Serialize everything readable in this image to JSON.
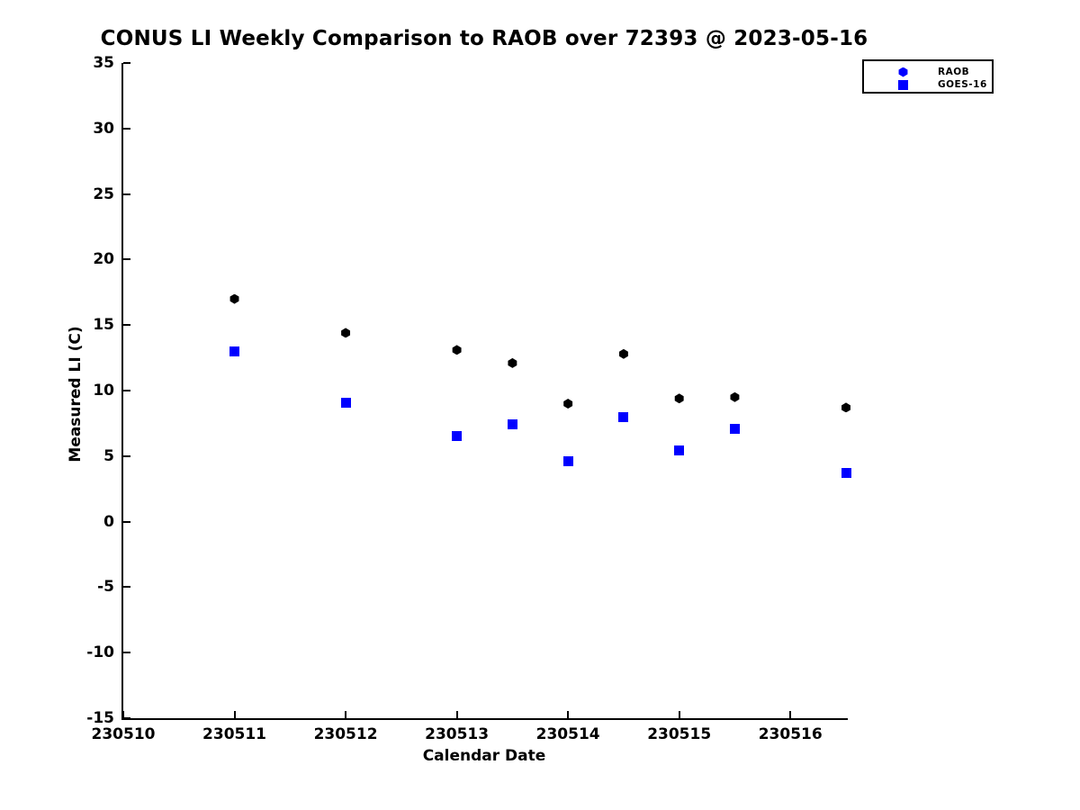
{
  "figure": {
    "title": "CONUS LI Weekly Comparison to RAOB over 72393 @ 2023-05-16",
    "xlabel": "Calendar Date",
    "ylabel": "Measured LI (C)"
  },
  "chart_data": {
    "type": "scatter",
    "title": "CONUS LI Weekly Comparison to RAOB over 72393 @ 2023-05-16",
    "xlabel": "Calendar Date",
    "ylabel": "Measured LI (C)",
    "grid": false,
    "legend_position": "top-right-outside",
    "x_tick_labels": [
      "230510",
      "230511",
      "230512",
      "230513",
      "230514",
      "230515",
      "230516"
    ],
    "x_tick_offsets": [
      0,
      1,
      2,
      3,
      4,
      5,
      6
    ],
    "x_range_offsets": [
      0,
      6.5
    ],
    "y_ticks": [
      35,
      30,
      25,
      20,
      15,
      10,
      5,
      0,
      -5,
      -10,
      -15
    ],
    "ylim": [
      -15,
      35
    ],
    "series": [
      {
        "name": "RAOB",
        "marker": "hexagon",
        "point_color": "#000000",
        "legend_marker_color": "#0000ff",
        "x_dates": [
          230511,
          230512,
          230513,
          230513.5,
          230514,
          230514.5,
          230515,
          230515.5,
          230516.5
        ],
        "x_offsets": [
          1,
          2,
          3,
          3.5,
          4,
          4.5,
          5,
          5.5,
          6.5
        ],
        "values": [
          17.0,
          14.4,
          13.1,
          12.1,
          9.0,
          12.8,
          9.4,
          9.5,
          8.7
        ]
      },
      {
        "name": "GOES-16",
        "marker": "square",
        "point_color": "#0000ff",
        "legend_marker_color": "#0000ff",
        "x_dates": [
          230511,
          230512,
          230513,
          230513.5,
          230514,
          230514.5,
          230515,
          230515.5,
          230516.5
        ],
        "x_offsets": [
          1,
          2,
          3,
          3.5,
          4,
          4.5,
          5,
          5.5,
          6.5
        ],
        "values": [
          13.0,
          9.1,
          6.5,
          7.4,
          4.6,
          8.0,
          5.4,
          7.1,
          3.7
        ]
      }
    ]
  }
}
